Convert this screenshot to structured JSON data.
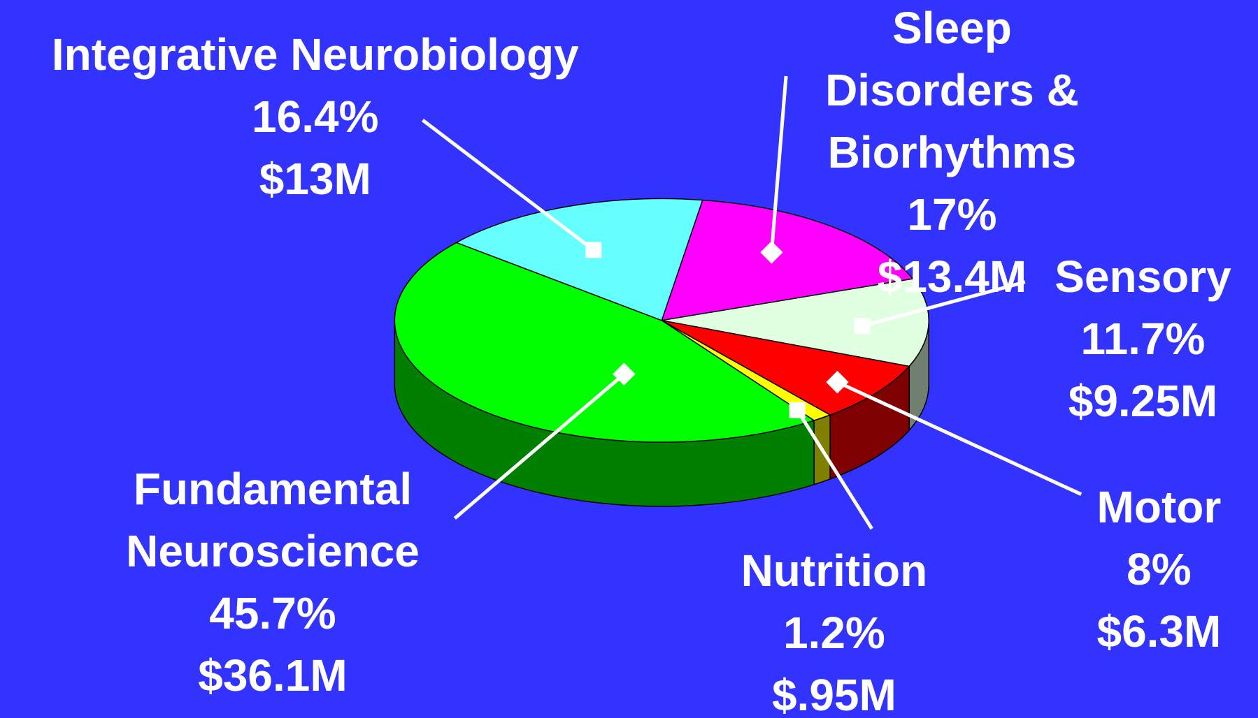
{
  "chart_data": {
    "type": "pie3d",
    "categories": [
      "Sleep Disorders &\nBiorhythms",
      "Sensory",
      "Motor",
      "Nutrition",
      "Fundamental\nNeuroscience",
      "Integrative Neurobiology"
    ],
    "values": [
      17,
      11.7,
      8,
      1.2,
      45.7,
      16.4
    ],
    "value_labels": [
      "17%",
      "11.7%",
      "8%",
      "1.2%",
      "45.7%",
      "16.4%"
    ],
    "amounts": [
      13400000,
      9250000,
      6300000,
      950000,
      36100000,
      13000000
    ],
    "amount_labels": [
      "$13.4M",
      "$9.25M",
      "$6.3M",
      "$.95M",
      "$36.1M",
      "$13M"
    ],
    "colors": [
      "#ff00ff",
      "#e0ffe0",
      "#ff0000",
      "#ffff00",
      "#00ff00",
      "#66ffff"
    ]
  }
}
